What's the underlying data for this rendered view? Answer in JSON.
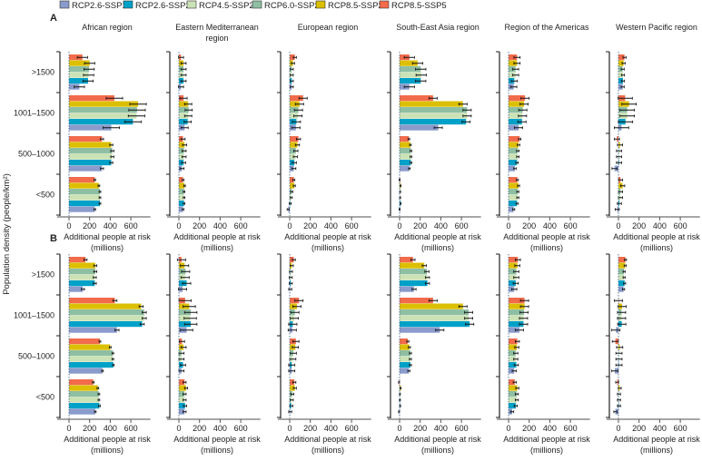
{
  "chart_data": {
    "type": "bar",
    "orientation": "horizontal",
    "ylabel": "Population density (people/km²)",
    "xlabel": [
      "Additional people at risk",
      "(millions)"
    ],
    "xticks": [
      0,
      200,
      400,
      600
    ],
    "xlim": [
      -115,
      790
    ],
    "categories": [
      ">1500",
      "1001–1500",
      "500–1000",
      "<500"
    ],
    "series": [
      {
        "name": "RCP2.6-SSP1",
        "color": "#8a9bcc"
      },
      {
        "name": "RCP2.6-SSP2",
        "color": "#00a1c8"
      },
      {
        "name": "RCP4.5-SSP2",
        "color": "#cbe2b6"
      },
      {
        "name": "RCP6.0-SSP2",
        "color": "#8fbfa2"
      },
      {
        "name": "RCP8.5-SSP2",
        "color": "#dcbf00"
      },
      {
        "name": "RCP8.5-SSP5",
        "color": "#f26b4b"
      }
    ],
    "region_titles": [
      [
        "African region"
      ],
      [
        "Eastern Mediterranean",
        "region"
      ],
      [
        "European region"
      ],
      [
        "South-East Asia region"
      ],
      [
        "Region of the Americas"
      ],
      [
        "Western Pacific region"
      ]
    ],
    "panels": [
      {
        "label": "A",
        "regions": [
          {
            "values": [
              [
                100,
                185,
                190,
                195,
                200,
                130
              ],
              [
                410,
                620,
                655,
                660,
                670,
                440
              ],
              [
                320,
                410,
                420,
                420,
                410,
                320
              ],
              [
                250,
                300,
                300,
                300,
                290,
                250
              ]
            ],
            "err": [
              50,
              80,
              15,
              8
            ]
          },
          {
            "values": [
              [
                20,
                45,
                45,
                45,
                45,
                20
              ],
              [
                55,
                85,
                90,
                95,
                90,
                45
              ],
              [
                30,
                45,
                50,
                50,
                55,
                40
              ],
              [
                40,
                50,
                50,
                50,
                55,
                40
              ]
            ],
            "err": [
              25,
              35,
              20,
              8
            ]
          },
          {
            "values": [
              [
                20,
                20,
                20,
                20,
                32,
                50
              ],
              [
                60,
                65,
                80,
                85,
                95,
                130
              ],
              [
                40,
                45,
                55,
                60,
                75,
                85
              ],
              [
                -15,
                5,
                15,
                20,
                45,
                40
              ]
            ],
            "err": [
              15,
              40,
              20,
              10
            ]
          },
          {
            "values": [
              [
                95,
                205,
                210,
                205,
                175,
                95
              ],
              [
                375,
                645,
                655,
                655,
                615,
                325
              ],
              [
                95,
                110,
                110,
                110,
                105,
                90
              ],
              [
                0,
                10,
                5,
                5,
                10,
                0
              ]
            ],
            "err": [
              50,
              40,
              8,
              5
            ]
          },
          {
            "values": [
              [
                50,
                56,
                68,
                68,
                82,
                82
              ],
              [
                97,
                130,
                135,
                138,
                150,
                160
              ],
              [
                62,
                82,
                90,
                90,
                97,
                108
              ],
              [
                50,
                82,
                90,
                90,
                97,
                85
              ]
            ],
            "err": [
              30,
              40,
              12,
              10
            ]
          },
          {
            "values": [
              [
                41,
                44,
                44,
                41,
                50,
                59
              ],
              [
                30,
                68,
                85,
                85,
                103,
                65
              ],
              [
                -38,
                6,
                6,
                6,
                15,
                -15
              ],
              [
                -12,
                9,
                20,
                20,
                41,
                20
              ]
            ],
            "err": [
              15,
              70,
              25,
              20
            ]
          }
        ]
      },
      {
        "label": "B",
        "regions": [
          {
            "values": [
              [
                135,
                250,
                250,
                255,
                255,
                160
              ],
              [
                465,
                710,
                730,
                730,
                700,
                445
              ],
              [
                325,
                430,
                425,
                425,
                400,
                300
              ],
              [
                255,
                295,
                290,
                290,
                280,
                235
              ]
            ],
            "err": [
              15,
              20,
              8,
              8
            ]
          },
          {
            "values": [
              [
                35,
                75,
                60,
                65,
                55,
                25
              ],
              [
                75,
                115,
                110,
                115,
                100,
                60
              ],
              [
                25,
                40,
                25,
                25,
                45,
                30
              ],
              [
                55,
                60,
                55,
                55,
                70,
                55
              ]
            ],
            "err": [
              40,
              60,
              25,
              15
            ]
          },
          {
            "values": [
              [
                5,
                10,
                10,
                12,
                20,
                40
              ],
              [
                25,
                30,
                45,
                50,
                70,
                90
              ],
              [
                20,
                20,
                30,
                35,
                55,
                60
              ],
              [
                5,
                15,
                20,
                25,
                50,
                45
              ]
            ],
            "err": [
              15,
              40,
              30,
              15
            ]
          },
          {
            "values": [
              [
                140,
                270,
                270,
                265,
                240,
                130
              ],
              [
                390,
                680,
                670,
                670,
                615,
                325
              ],
              [
                90,
                105,
                105,
                105,
                95,
                80
              ],
              [
                -5,
                5,
                3,
                3,
                10,
                -5
              ]
            ],
            "err": [
              20,
              40,
              10,
              5
            ]
          },
          {
            "values": [
              [
                55,
                70,
                75,
                75,
                85,
                90
              ],
              [
                105,
                145,
                145,
                150,
                155,
                155
              ],
              [
                55,
                75,
                70,
                70,
                80,
                85
              ],
              [
                35,
                70,
                80,
                80,
                85,
                60
              ]
            ],
            "err": [
              25,
              40,
              20,
              15
            ]
          },
          {
            "values": [
              [
                50,
                60,
                55,
                55,
                65,
                68
              ],
              [
                -25,
                32,
                30,
                30,
                35,
                0
              ],
              [
                -35,
                5,
                5,
                5,
                12,
                -30
              ],
              [
                -30,
                5,
                5,
                5,
                12,
                -12
              ]
            ],
            "err": [
              10,
              40,
              30,
              15
            ]
          }
        ]
      }
    ]
  }
}
